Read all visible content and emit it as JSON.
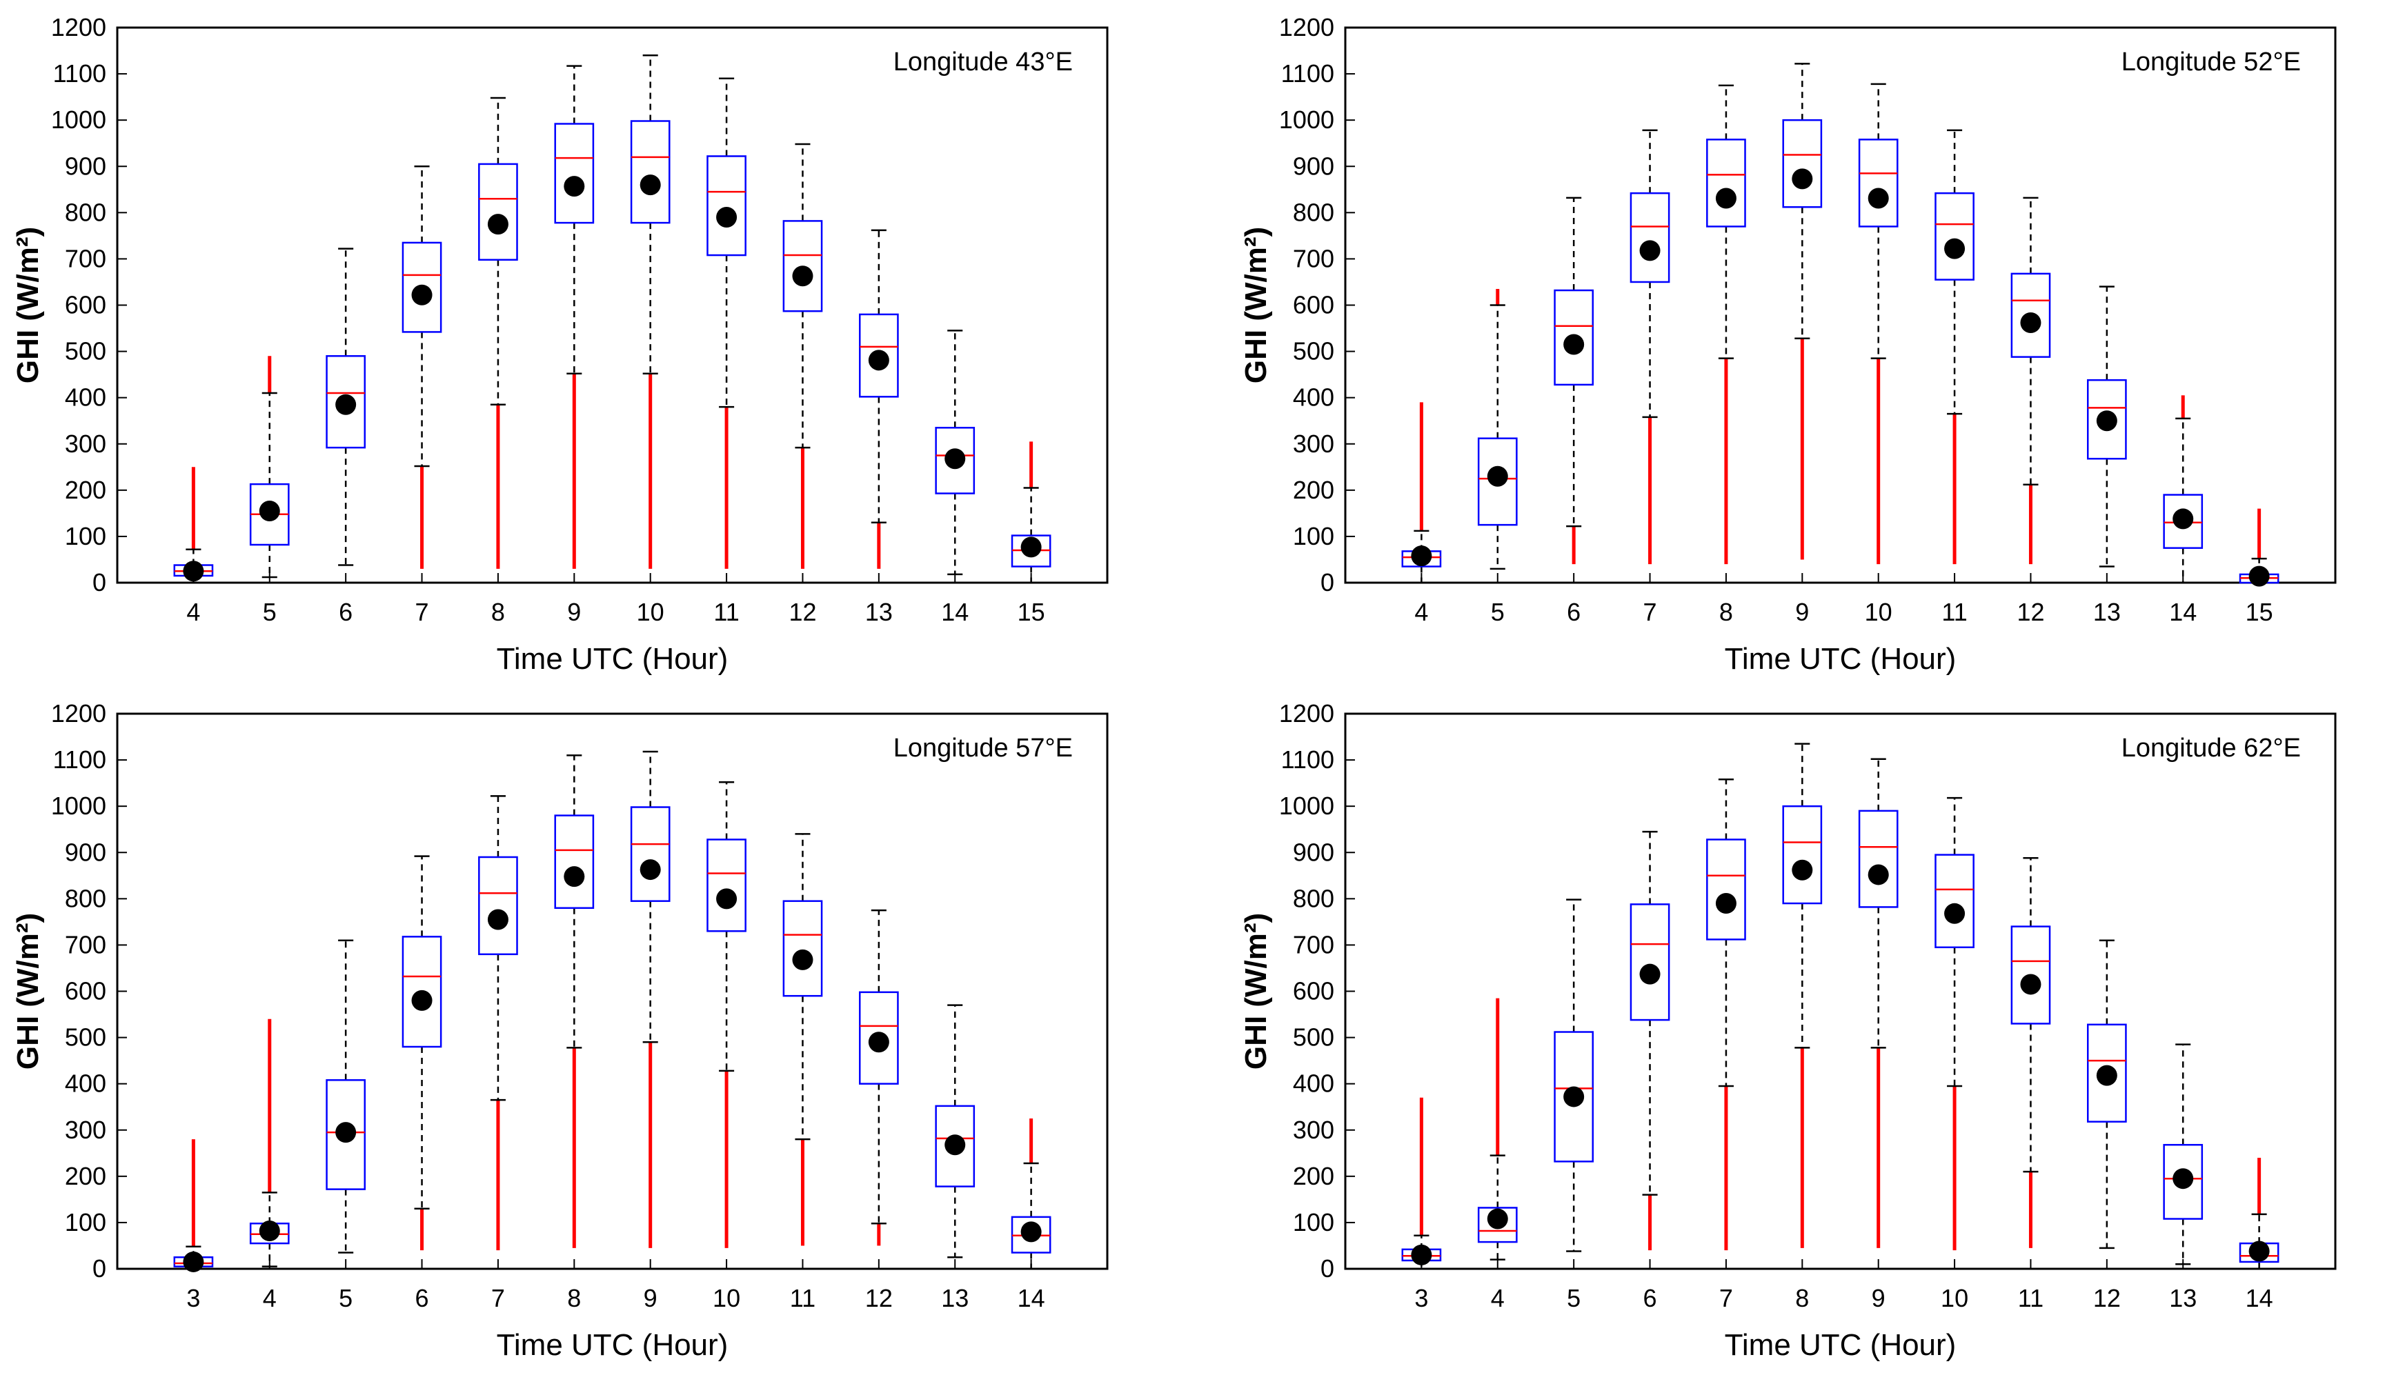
{
  "figure": {
    "colors": {
      "box": "#0000ff",
      "median": "#ff0000",
      "whisker": "#000000",
      "outlier": "#ff0000",
      "mean_marker": "#000000",
      "axes": "#000000"
    }
  },
  "chart_data": [
    {
      "type": "box",
      "title": "Longitude 43°E",
      "xlabel": "Time UTC (Hour)",
      "ylabel": "GHI (W/m²)",
      "ylim": [
        0,
        1200
      ],
      "yticks": [
        0,
        100,
        200,
        300,
        400,
        500,
        600,
        700,
        800,
        900,
        1000,
        1100,
        1200
      ],
      "categories": [
        "4",
        "5",
        "6",
        "7",
        "8",
        "9",
        "10",
        "11",
        "12",
        "13",
        "14",
        "15"
      ],
      "grid": false,
      "boxes": [
        {
          "q1": 15,
          "median": 25,
          "q3": 38,
          "whisker_low": 0,
          "whisker_high": 72,
          "mean": 25,
          "outlier_high": 250
        },
        {
          "q1": 82,
          "median": 148,
          "q3": 213,
          "whisker_low": 12,
          "whisker_high": 410,
          "mean": 155,
          "outlier_high": 490
        },
        {
          "q1": 292,
          "median": 410,
          "q3": 490,
          "whisker_low": 38,
          "whisker_high": 722,
          "mean": 385
        },
        {
          "q1": 542,
          "median": 665,
          "q3": 735,
          "whisker_low": 252,
          "whisker_high": 900,
          "mean": 622,
          "outlier_low": 30
        },
        {
          "q1": 698,
          "median": 830,
          "q3": 905,
          "whisker_low": 385,
          "whisker_high": 1048,
          "mean": 775,
          "outlier_low": 30
        },
        {
          "q1": 778,
          "median": 918,
          "q3": 992,
          "whisker_low": 452,
          "whisker_high": 1117,
          "mean": 857,
          "outlier_low": 30
        },
        {
          "q1": 778,
          "median": 920,
          "q3": 998,
          "whisker_low": 452,
          "whisker_high": 1140,
          "mean": 860,
          "outlier_low": 30
        },
        {
          "q1": 708,
          "median": 845,
          "q3": 922,
          "whisker_low": 380,
          "whisker_high": 1090,
          "mean": 790,
          "outlier_low": 30
        },
        {
          "q1": 587,
          "median": 708,
          "q3": 782,
          "whisker_low": 292,
          "whisker_high": 948,
          "mean": 663,
          "outlier_low": 30
        },
        {
          "q1": 402,
          "median": 510,
          "q3": 580,
          "whisker_low": 130,
          "whisker_high": 762,
          "mean": 481,
          "outlier_low": 30
        },
        {
          "q1": 193,
          "median": 275,
          "q3": 335,
          "whisker_low": 18,
          "whisker_high": 545,
          "mean": 268
        },
        {
          "q1": 35,
          "median": 70,
          "q3": 102,
          "whisker_low": 0,
          "whisker_high": 205,
          "mean": 77,
          "outlier_high": 305
        }
      ]
    },
    {
      "type": "box",
      "title": "Longitude 52°E",
      "xlabel": "Time UTC (Hour)",
      "ylabel": "GHI (W/m²)",
      "ylim": [
        0,
        1200
      ],
      "yticks": [
        0,
        100,
        200,
        300,
        400,
        500,
        600,
        700,
        800,
        900,
        1000,
        1100,
        1200
      ],
      "categories": [
        "4",
        "5",
        "6",
        "7",
        "8",
        "9",
        "10",
        "11",
        "12",
        "13",
        "14",
        "15"
      ],
      "grid": false,
      "boxes": [
        {
          "q1": 35,
          "median": 55,
          "q3": 68,
          "whisker_low": 0,
          "whisker_high": 112,
          "mean": 58,
          "outlier_high": 390
        },
        {
          "q1": 125,
          "median": 225,
          "q3": 312,
          "whisker_low": 30,
          "whisker_high": 600,
          "mean": 230,
          "outlier_high": 635
        },
        {
          "q1": 428,
          "median": 555,
          "q3": 632,
          "whisker_low": 122,
          "whisker_high": 832,
          "mean": 515,
          "outlier_low": 40
        },
        {
          "q1": 650,
          "median": 770,
          "q3": 842,
          "whisker_low": 358,
          "whisker_high": 978,
          "mean": 718,
          "outlier_low": 40
        },
        {
          "q1": 770,
          "median": 882,
          "q3": 958,
          "whisker_low": 485,
          "whisker_high": 1075,
          "mean": 831,
          "outlier_low": 40
        },
        {
          "q1": 812,
          "median": 925,
          "q3": 1000,
          "whisker_low": 528,
          "whisker_high": 1122,
          "mean": 873,
          "outlier_low": 50
        },
        {
          "q1": 770,
          "median": 885,
          "q3": 958,
          "whisker_low": 485,
          "whisker_high": 1078,
          "mean": 831,
          "outlier_low": 40
        },
        {
          "q1": 655,
          "median": 775,
          "q3": 842,
          "whisker_low": 365,
          "whisker_high": 978,
          "mean": 722,
          "outlier_low": 40
        },
        {
          "q1": 488,
          "median": 610,
          "q3": 668,
          "whisker_low": 212,
          "whisker_high": 832,
          "mean": 562,
          "outlier_low": 40
        },
        {
          "q1": 268,
          "median": 378,
          "q3": 438,
          "whisker_low": 35,
          "whisker_high": 640,
          "mean": 350
        },
        {
          "q1": 75,
          "median": 130,
          "q3": 190,
          "whisker_low": 0,
          "whisker_high": 355,
          "mean": 138,
          "outlier_high": 405
        },
        {
          "q1": 0,
          "median": 10,
          "q3": 18,
          "whisker_low": 0,
          "whisker_high": 52,
          "mean": 14,
          "outlier_high": 160
        }
      ]
    },
    {
      "type": "box",
      "title": "Longitude 57°E",
      "xlabel": "Time UTC (Hour)",
      "ylabel": "GHI (W/m²)",
      "ylim": [
        0,
        1200
      ],
      "yticks": [
        0,
        100,
        200,
        300,
        400,
        500,
        600,
        700,
        800,
        900,
        1000,
        1100,
        1200
      ],
      "categories": [
        "3",
        "4",
        "5",
        "6",
        "7",
        "8",
        "9",
        "10",
        "11",
        "12",
        "13",
        "14"
      ],
      "grid": false,
      "boxes": [
        {
          "q1": 5,
          "median": 12,
          "q3": 25,
          "whisker_low": 0,
          "whisker_high": 48,
          "mean": 15,
          "outlier_high": 280
        },
        {
          "q1": 55,
          "median": 75,
          "q3": 98,
          "whisker_low": 5,
          "whisker_high": 165,
          "mean": 82,
          "outlier_high": 540
        },
        {
          "q1": 172,
          "median": 295,
          "q3": 408,
          "whisker_low": 35,
          "whisker_high": 710,
          "mean": 295
        },
        {
          "q1": 480,
          "median": 632,
          "q3": 718,
          "whisker_low": 130,
          "whisker_high": 892,
          "mean": 580,
          "outlier_low": 40
        },
        {
          "q1": 680,
          "median": 812,
          "q3": 890,
          "whisker_low": 365,
          "whisker_high": 1022,
          "mean": 755,
          "outlier_low": 40
        },
        {
          "q1": 780,
          "median": 905,
          "q3": 980,
          "whisker_low": 478,
          "whisker_high": 1110,
          "mean": 848,
          "outlier_low": 45
        },
        {
          "q1": 795,
          "median": 918,
          "q3": 998,
          "whisker_low": 490,
          "whisker_high": 1118,
          "mean": 863,
          "outlier_low": 45
        },
        {
          "q1": 730,
          "median": 855,
          "q3": 928,
          "whisker_low": 428,
          "whisker_high": 1052,
          "mean": 800,
          "outlier_low": 45
        },
        {
          "q1": 590,
          "median": 722,
          "q3": 795,
          "whisker_low": 280,
          "whisker_high": 940,
          "mean": 668,
          "outlier_low": 50
        },
        {
          "q1": 400,
          "median": 525,
          "q3": 598,
          "whisker_low": 98,
          "whisker_high": 775,
          "mean": 490,
          "outlier_low": 50
        },
        {
          "q1": 178,
          "median": 282,
          "q3": 352,
          "whisker_low": 25,
          "whisker_high": 570,
          "mean": 268
        },
        {
          "q1": 35,
          "median": 72,
          "q3": 112,
          "whisker_low": 0,
          "whisker_high": 228,
          "mean": 80,
          "outlier_high": 325
        }
      ]
    },
    {
      "type": "box",
      "title": "Longitude 62°E",
      "xlabel": "Time UTC (Hour)",
      "ylabel": "GHI (W/m²)",
      "ylim": [
        0,
        1200
      ],
      "yticks": [
        0,
        100,
        200,
        300,
        400,
        500,
        600,
        700,
        800,
        900,
        1000,
        1100,
        1200
      ],
      "categories": [
        "3",
        "4",
        "5",
        "6",
        "7",
        "8",
        "9",
        "10",
        "11",
        "12",
        "13",
        "14"
      ],
      "grid": false,
      "boxes": [
        {
          "q1": 18,
          "median": 28,
          "q3": 42,
          "whisker_low": 0,
          "whisker_high": 72,
          "mean": 30,
          "outlier_high": 370
        },
        {
          "q1": 58,
          "median": 82,
          "q3": 132,
          "whisker_low": 20,
          "whisker_high": 245,
          "mean": 108,
          "outlier_high": 585
        },
        {
          "q1": 232,
          "median": 390,
          "q3": 512,
          "whisker_low": 38,
          "whisker_high": 798,
          "mean": 372
        },
        {
          "q1": 538,
          "median": 702,
          "q3": 788,
          "whisker_low": 160,
          "whisker_high": 945,
          "mean": 637,
          "outlier_low": 40
        },
        {
          "q1": 712,
          "median": 850,
          "q3": 928,
          "whisker_low": 395,
          "whisker_high": 1058,
          "mean": 790,
          "outlier_low": 40
        },
        {
          "q1": 790,
          "median": 922,
          "q3": 1000,
          "whisker_low": 478,
          "whisker_high": 1135,
          "mean": 862,
          "outlier_low": 45
        },
        {
          "q1": 782,
          "median": 912,
          "q3": 990,
          "whisker_low": 478,
          "whisker_high": 1102,
          "mean": 852,
          "outlier_low": 45
        },
        {
          "q1": 695,
          "median": 820,
          "q3": 895,
          "whisker_low": 395,
          "whisker_high": 1018,
          "mean": 768,
          "outlier_low": 40
        },
        {
          "q1": 530,
          "median": 665,
          "q3": 740,
          "whisker_low": 210,
          "whisker_high": 888,
          "mean": 615,
          "outlier_low": 45
        },
        {
          "q1": 318,
          "median": 450,
          "q3": 528,
          "whisker_low": 45,
          "whisker_high": 710,
          "mean": 418
        },
        {
          "q1": 108,
          "median": 195,
          "q3": 268,
          "whisker_low": 10,
          "whisker_high": 485,
          "mean": 195
        },
        {
          "q1": 15,
          "median": 28,
          "q3": 55,
          "whisker_low": 0,
          "whisker_high": 118,
          "mean": 38,
          "outlier_high": 240
        }
      ]
    }
  ]
}
